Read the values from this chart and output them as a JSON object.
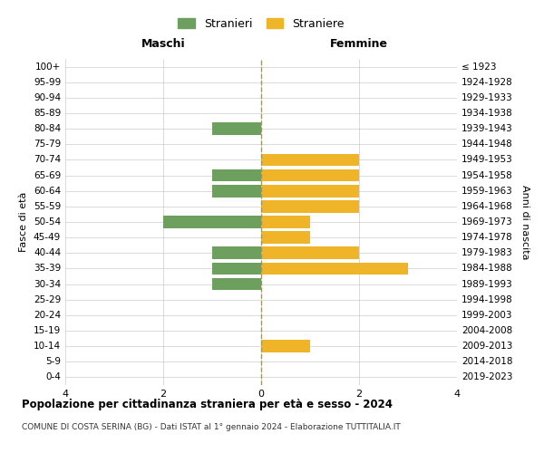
{
  "age_groups": [
    "100+",
    "95-99",
    "90-94",
    "85-89",
    "80-84",
    "75-79",
    "70-74",
    "65-69",
    "60-64",
    "55-59",
    "50-54",
    "45-49",
    "40-44",
    "35-39",
    "30-34",
    "25-29",
    "20-24",
    "15-19",
    "10-14",
    "5-9",
    "0-4"
  ],
  "birth_years": [
    "≤ 1923",
    "1924-1928",
    "1929-1933",
    "1934-1938",
    "1939-1943",
    "1944-1948",
    "1949-1953",
    "1954-1958",
    "1959-1963",
    "1964-1968",
    "1969-1973",
    "1974-1978",
    "1979-1983",
    "1984-1988",
    "1989-1993",
    "1994-1998",
    "1999-2003",
    "2004-2008",
    "2009-2013",
    "2014-2018",
    "2019-2023"
  ],
  "maschi": [
    0,
    0,
    0,
    0,
    1,
    0,
    0,
    1,
    1,
    0,
    2,
    0,
    1,
    1,
    1,
    0,
    0,
    0,
    0,
    0,
    0
  ],
  "femmine": [
    0,
    0,
    0,
    0,
    0,
    0,
    2,
    2,
    2,
    2,
    1,
    1,
    2,
    3,
    0,
    0,
    0,
    0,
    1,
    0,
    0
  ],
  "maschi_color": "#6d9f5e",
  "femmine_color": "#f0b429",
  "background_color": "#ffffff",
  "grid_color": "#cccccc",
  "title": "Popolazione per cittadinanza straniera per età e sesso - 2024",
  "subtitle": "COMUNE DI COSTA SERINA (BG) - Dati ISTAT al 1° gennaio 2024 - Elaborazione TUTTITALIA.IT",
  "legend_maschi": "Stranieri",
  "legend_femmine": "Straniere",
  "xlabel_left": "Maschi",
  "xlabel_right": "Femmine",
  "ylabel_left": "Fasce di età",
  "ylabel_right": "Anni di nascita",
  "xlim": 4,
  "bar_height": 0.8
}
